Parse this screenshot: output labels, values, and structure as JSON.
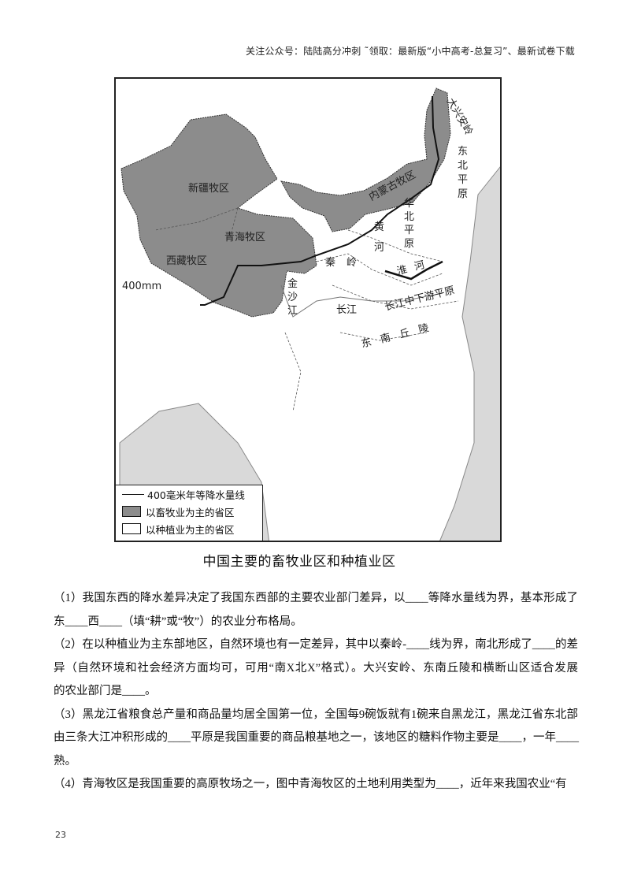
{
  "header": {
    "text": "关注公众号：陆陆高分冲刺  ˜领取：最新版“小中高考-总复习”、最新试卷下载"
  },
  "map": {
    "colors": {
      "pastoral": "#8c8c8c",
      "sea": "#d9d9d9",
      "land": "#ffffff",
      "line": "#111111"
    },
    "labels": {
      "xinjiang": "新疆牧区",
      "qinghai": "青海牧区",
      "xizang": "西藏牧区",
      "neimenggu": "内蒙古牧区",
      "daxinganling": "大兴安岭",
      "dongbei": "东北平原",
      "huabei": "华北平原",
      "huanghe": "黄河",
      "qinling": "秦岭",
      "huaihe": "淮河",
      "jinshajiang": "金沙江",
      "changjiang": "长江",
      "changjiang_plain": "长江中下游平原",
      "dongnan": "东南丘陵",
      "isohyet": "400mm"
    },
    "legend": [
      {
        "symbol": "line",
        "label": "400毫米年等降水量线"
      },
      {
        "symbol": "grey-box",
        "label": "以畜牧业为主的省区"
      },
      {
        "symbol": "white-box",
        "label": "以种植业为主的省区"
      }
    ]
  },
  "caption": "中国主要的畜牧业区和种植业区",
  "questions": [
    [
      "（1）我国东西的降水差异决定了我国东西部的主要农业部门差异，以____等降水量线为界，基本形成了",
      "东____西____（填“耕”或“牧”）的农业分布格局。"
    ],
    [
      "（2）在以种植业为主东部地区，自然环境也有一定差异，其中以秦岭-____线为界，南北形成了____的差",
      "异（自然环境和社会经济方面均可，可用“南X北X”格式）。大兴安岭、东南丘陵和横断山区适合发展",
      "的农业部门是____。"
    ],
    [
      "（3）黑龙江省粮食总产量和商品量均居全国第一位，全国每9碗饭就有1碗来自黑龙江，黑龙江省东北部",
      "由三条大江冲积形成的____平原是我国重要的商品粮基地之一，该地区的糖料作物主要是____，一年____",
      "熟。"
    ],
    [
      "（4）青海牧区是我国重要的高原牧场之一，图中青海牧区的土地利用类型为____，近年来我国农业“有"
    ]
  ],
  "page_number": "23"
}
